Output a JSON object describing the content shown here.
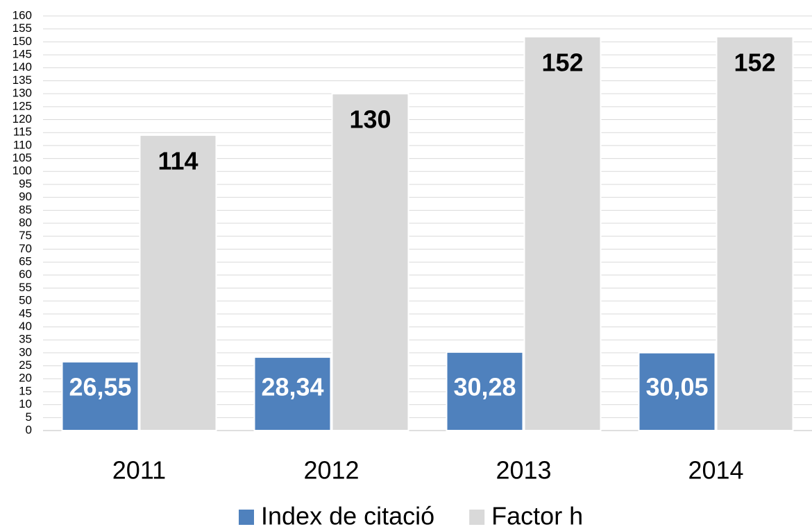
{
  "chart_data": {
    "type": "bar",
    "categories": [
      "2011",
      "2012",
      "2013",
      "2014"
    ],
    "series": [
      {
        "name": "Index de citació",
        "color": "#4f81bd",
        "values": [
          26.55,
          28.34,
          30.28,
          30.05
        ],
        "value_labels": [
          "26,55",
          "28,34",
          "30,28",
          "30,05"
        ]
      },
      {
        "name": "Factor h",
        "color": "#d9d9d9",
        "values": [
          114,
          130,
          152,
          152
        ]
      }
    ],
    "ylim": [
      0,
      160
    ],
    "yticks": [
      0,
      5,
      10,
      15,
      20,
      25,
      30,
      35,
      40,
      45,
      50,
      55,
      60,
      65,
      70,
      75,
      80,
      85,
      90,
      95,
      100,
      105,
      110,
      115,
      120,
      125,
      130,
      135,
      140,
      145,
      150,
      155,
      160
    ],
    "grid": true,
    "legend": "bottom"
  }
}
